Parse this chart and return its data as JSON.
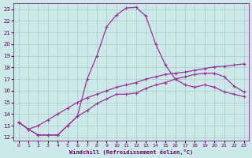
{
  "bg_color": "#cce8e8",
  "grid_color": "#aacccc",
  "line_color": "#993399",
  "xlabel": "Windchill (Refroidissement éolien,°C)",
  "xlim_min": -0.5,
  "xlim_max": 23.5,
  "ylim_min": 11.7,
  "ylim_max": 23.5,
  "xticks": [
    0,
    1,
    2,
    3,
    4,
    5,
    6,
    7,
    8,
    9,
    10,
    11,
    12,
    13,
    14,
    15,
    16,
    17,
    18,
    19,
    20,
    21,
    22,
    23
  ],
  "yticks": [
    12,
    13,
    14,
    15,
    16,
    17,
    18,
    19,
    20,
    21,
    22,
    23
  ],
  "line1_x": [
    0,
    1,
    2,
    3,
    4,
    5,
    6,
    7,
    8,
    9,
    10,
    11,
    12,
    13,
    14,
    15,
    16,
    17,
    18,
    19,
    20,
    21,
    22,
    23
  ],
  "line1_y": [
    13.3,
    12.7,
    13.0,
    13.5,
    14.0,
    14.5,
    15.0,
    15.4,
    15.7,
    16.0,
    16.3,
    16.5,
    16.7,
    17.0,
    17.2,
    17.4,
    17.5,
    17.6,
    17.75,
    17.9,
    18.05,
    18.1,
    18.2,
    18.3
  ],
  "line2_x": [
    0,
    1,
    2,
    3,
    4,
    5,
    6,
    7,
    8,
    9,
    10,
    11,
    12,
    13,
    14,
    15,
    16,
    17,
    18,
    19,
    20,
    21,
    22,
    23
  ],
  "line2_y": [
    13.3,
    12.7,
    12.2,
    12.2,
    12.2,
    13.0,
    13.8,
    14.3,
    14.9,
    15.3,
    15.7,
    15.7,
    15.8,
    16.2,
    16.5,
    16.7,
    17.0,
    17.2,
    17.4,
    17.5,
    17.5,
    17.2,
    16.4,
    15.9
  ],
  "line3_x": [
    0,
    1,
    2,
    3,
    4,
    5,
    6,
    7,
    8,
    9,
    10,
    11,
    12,
    13,
    14,
    15,
    16,
    17,
    18,
    19,
    20,
    21,
    22,
    23
  ],
  "line3_y": [
    13.3,
    12.7,
    12.2,
    12.2,
    12.2,
    13.0,
    13.8,
    17.0,
    19.0,
    21.5,
    22.5,
    23.1,
    23.15,
    22.4,
    20.0,
    18.2,
    17.0,
    16.5,
    16.3,
    16.5,
    16.3,
    15.9,
    15.7,
    15.5
  ]
}
